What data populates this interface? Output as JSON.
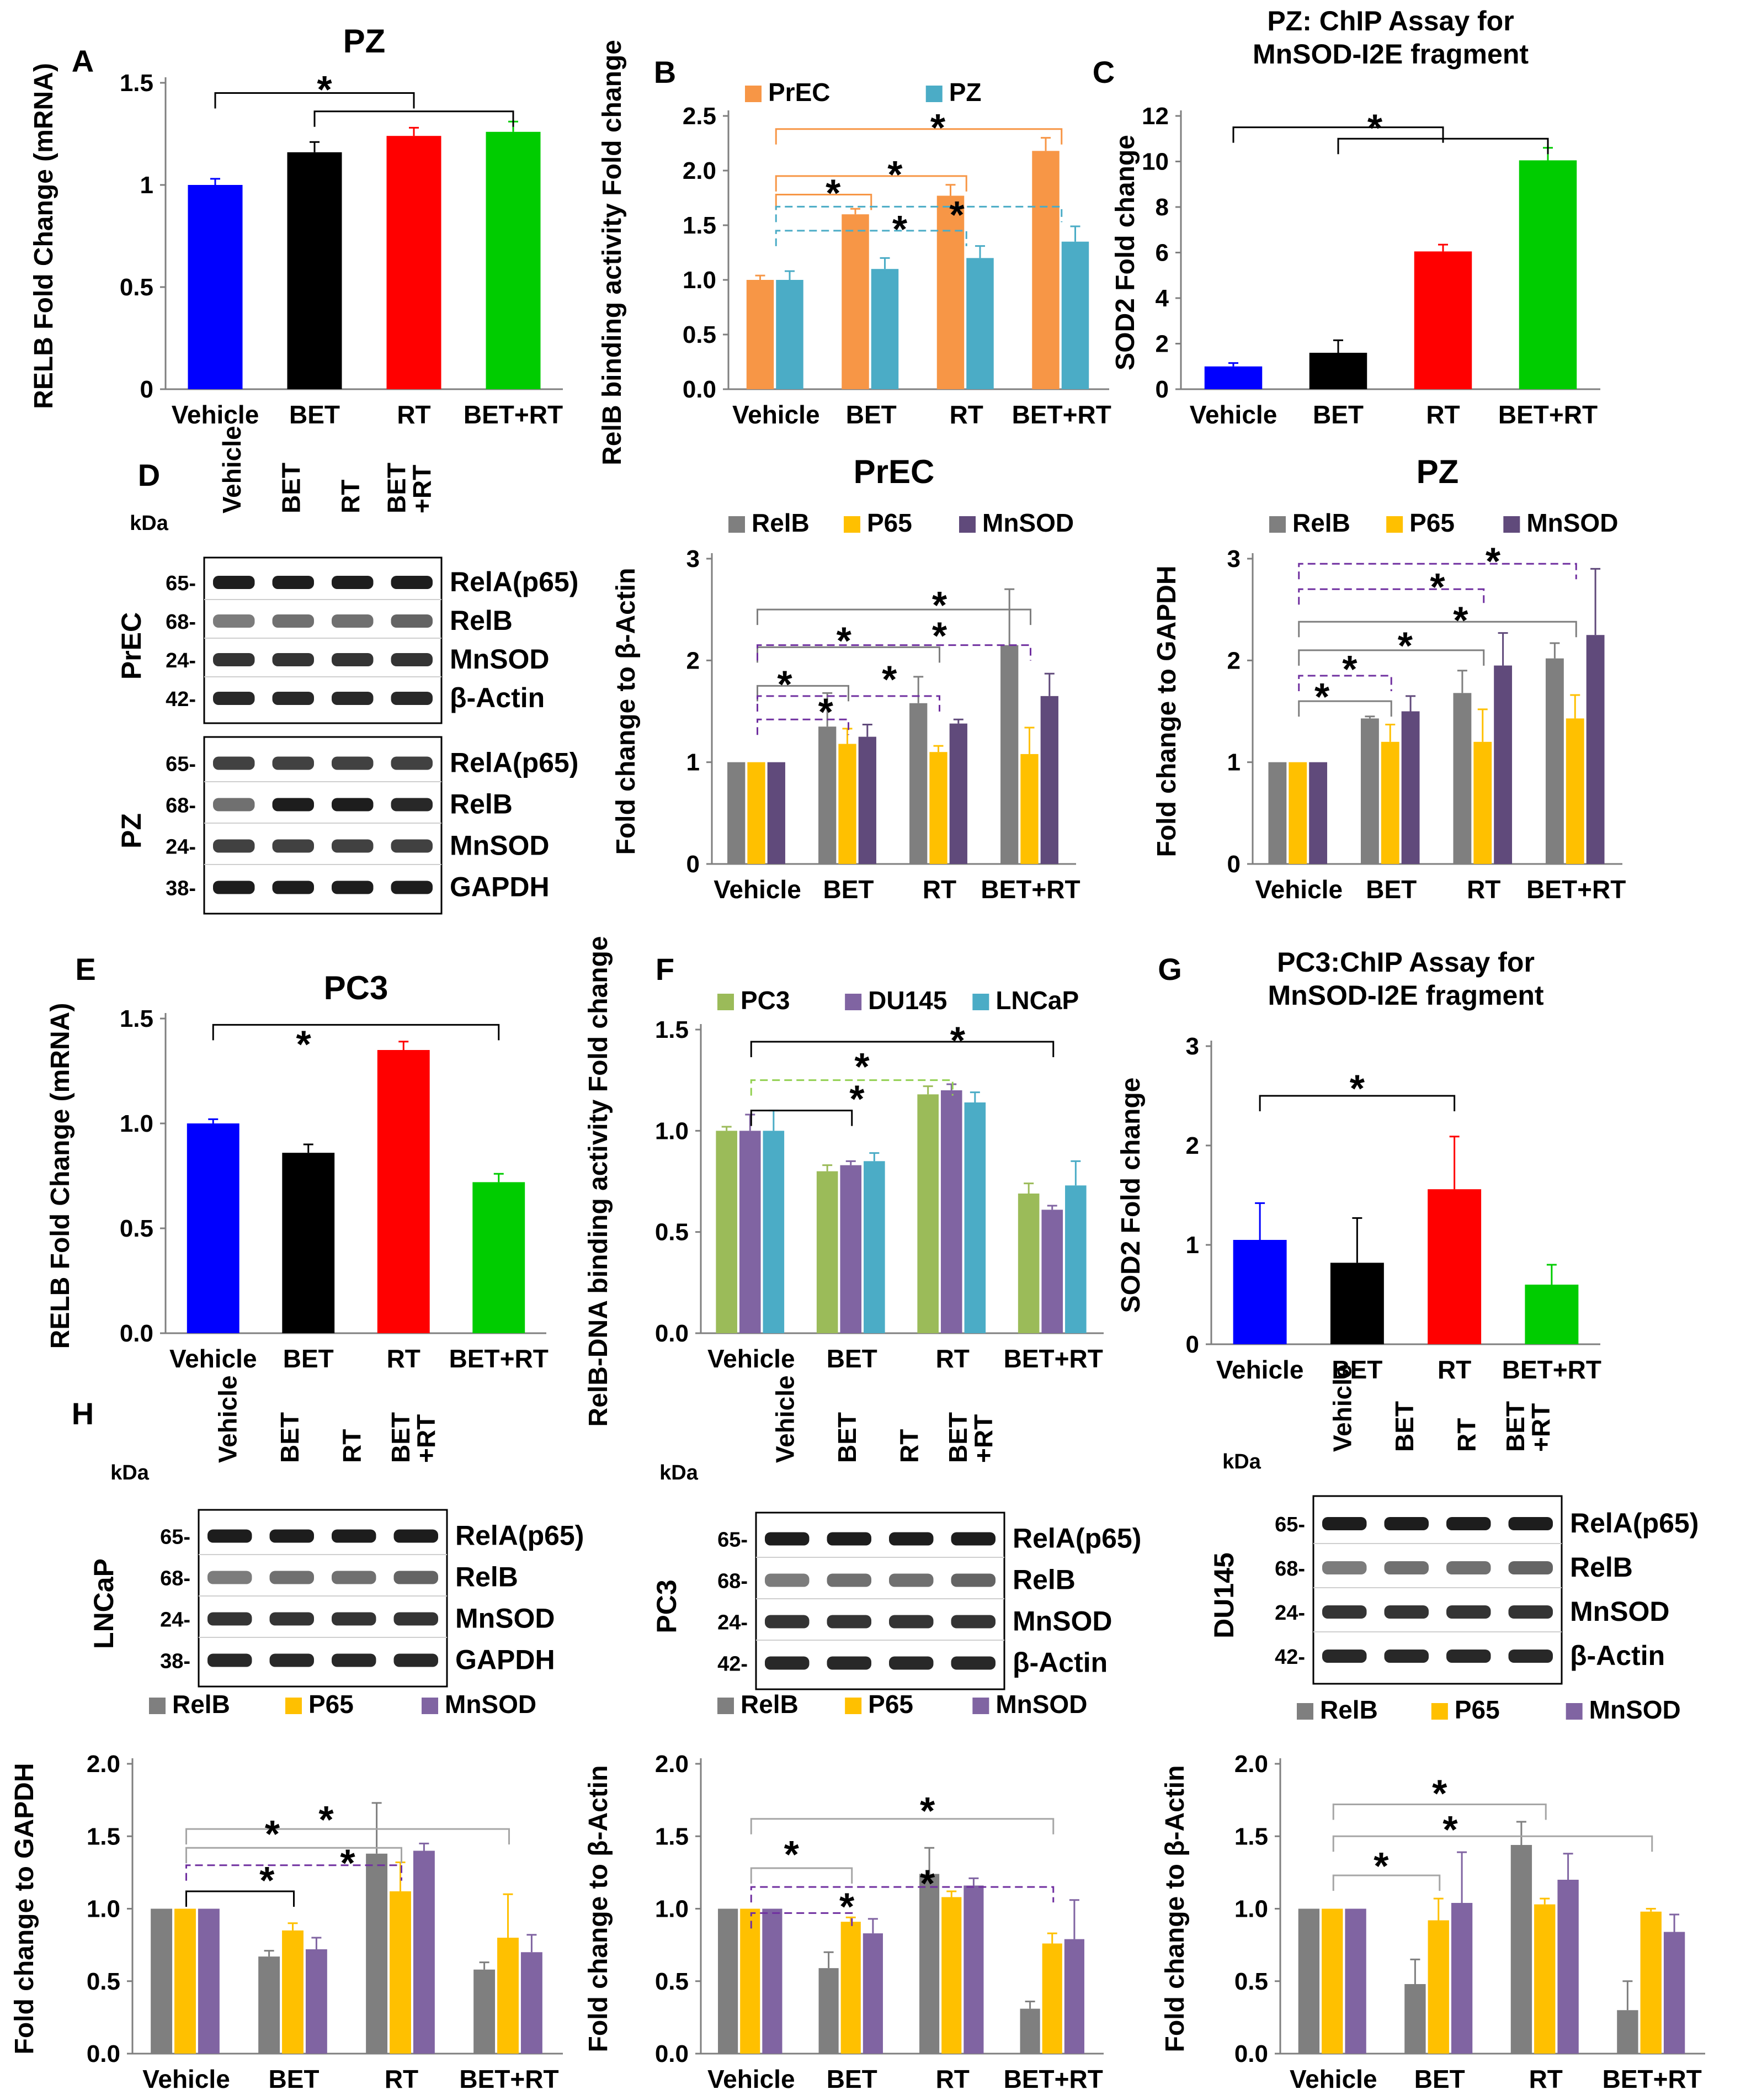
{
  "colors": {
    "vehicle": "#0000FF",
    "bet": "#000000",
    "rt": "#FF0000",
    "betrt": "#00CC00",
    "prec": "#F79646",
    "pz": "#4BACC6",
    "relb": "#7F7F7F",
    "p65": "#FFC000",
    "mnsod": "#604A7B",
    "pc3": "#9BBB59",
    "du145": "#8064A2",
    "lncap": "#4BACC6",
    "sig_green": "#92D050",
    "sig_purple": "#7030A0"
  },
  "blots": [
    {
      "panel": "D",
      "lanes": [
        "Vehicle",
        "BET",
        "RT",
        "BET +RT"
      ],
      "kda_label": "kDa",
      "groups": [
        {
          "cell": "PrEC",
          "rows": [
            {
              "kda": "65-",
              "protein": "RelA(p65)"
            },
            {
              "kda": "68-",
              "protein": "RelB"
            },
            {
              "kda": "24-",
              "protein": "MnSOD"
            },
            {
              "kda": "42-",
              "protein": "β-Actin"
            }
          ]
        },
        {
          "cell": "PZ",
          "rows": [
            {
              "kda": "65-",
              "protein": "RelA(p65)"
            },
            {
              "kda": "68-",
              "protein": "RelB"
            },
            {
              "kda": "24-",
              "protein": "MnSOD"
            },
            {
              "kda": "38-",
              "protein": "GAPDH"
            }
          ]
        }
      ]
    },
    {
      "panel": "H",
      "lanes": [
        "Vehicle",
        "BET",
        "RT",
        "BET +RT"
      ],
      "kda_label": "kDa",
      "groups": [
        {
          "cell": "LNCaP",
          "rows": [
            {
              "kda": "65-",
              "protein": "RelA(p65)"
            },
            {
              "kda": "68-",
              "protein": "RelB"
            },
            {
              "kda": "24-",
              "protein": "MnSOD"
            },
            {
              "kda": "38-",
              "protein": "GAPDH"
            }
          ]
        }
      ]
    },
    {
      "panel": "",
      "lanes": [
        "Vehicle",
        "BET",
        "RT",
        "BET +RT"
      ],
      "kda_label": "kDa",
      "groups": [
        {
          "cell": "PC3",
          "rows": [
            {
              "kda": "65-",
              "protein": "RelA(p65)"
            },
            {
              "kda": "68-",
              "protein": "RelB"
            },
            {
              "kda": "24-",
              "protein": "MnSOD"
            },
            {
              "kda": "42-",
              "protein": "β-Actin"
            }
          ]
        }
      ]
    },
    {
      "panel": "",
      "lanes": [
        "Vehicle",
        "BET",
        "RT",
        "BET +RT"
      ],
      "kda_label": "kDa",
      "groups": [
        {
          "cell": "DU145",
          "rows": [
            {
              "kda": "65-",
              "protein": "RelA(p65)"
            },
            {
              "kda": "68-",
              "protein": "RelB"
            },
            {
              "kda": "24-",
              "protein": "MnSOD"
            },
            {
              "kda": "42-",
              "protein": "β-Actin"
            }
          ]
        }
      ]
    }
  ],
  "chart_data": [
    {
      "panel": "A",
      "type": "bar",
      "title": "PZ",
      "ylabel": "RELB Fold Change (mRNA)",
      "categories": [
        "Vehicle",
        "BET",
        "RT",
        "BET+RT"
      ],
      "ylim": [
        0,
        1.5
      ],
      "yticks": [
        "0",
        "0.5",
        "1",
        "1.5"
      ],
      "tick_values": [
        0,
        0.5,
        1,
        1.5
      ],
      "series": [
        {
          "name": "RELB",
          "values": [
            1.0,
            1.16,
            1.24,
            1.26
          ],
          "errors": [
            0.03,
            0.05,
            0.04,
            0.05
          ],
          "colors": [
            "#0000FF",
            "#000000",
            "#FF0000",
            "#00CC00"
          ]
        }
      ],
      "significance": [
        {
          "label": "*",
          "color": "#000000",
          "from": "Vehicle",
          "to": [
            "BET",
            "RT",
            "BET+RT"
          ]
        }
      ]
    },
    {
      "panel": "B",
      "type": "bar",
      "title": "",
      "ylabel": "RelB binding activity Fold change",
      "categories": [
        "Vehicle",
        "BET",
        "RT",
        "BET+RT"
      ],
      "ylim": [
        0,
        2.5
      ],
      "yticks": [
        "0.0",
        "0.5",
        "1.0",
        "1.5",
        "2.0",
        "2.5"
      ],
      "tick_values": [
        0,
        0.5,
        1,
        1.5,
        2,
        2.5
      ],
      "legend": [
        "PrEC",
        "PZ"
      ],
      "series": [
        {
          "name": "PrEC",
          "values": [
            1.0,
            1.6,
            1.77,
            2.18
          ],
          "errors": [
            0.04,
            0.05,
            0.1,
            0.12
          ],
          "color": "#F79646"
        },
        {
          "name": "PZ",
          "values": [
            1.0,
            1.1,
            1.2,
            1.35
          ],
          "errors": [
            0.08,
            0.1,
            0.11,
            0.14
          ],
          "color": "#4BACC6"
        }
      ],
      "significance": [
        {
          "label": "*",
          "color": "#F79646",
          "note": "PrEC Vehicle vs BET, RT, BET+RT"
        },
        {
          "label": "*",
          "color": "#4BACC6",
          "note": "PZ Vehicle vs BET, RT, BET+RT (dashed)"
        }
      ]
    },
    {
      "panel": "C",
      "type": "bar",
      "title": "PZ: ChIP Assay for MnSOD-I2E fragment",
      "ylabel": "SOD2 Fold change",
      "categories": [
        "Vehicle",
        "BET",
        "RT",
        "BET+RT"
      ],
      "ylim": [
        0,
        12
      ],
      "yticks": [
        "0",
        "2",
        "4",
        "6",
        "8",
        "10",
        "12"
      ],
      "tick_values": [
        0,
        2,
        4,
        6,
        8,
        10,
        12
      ],
      "series": [
        {
          "name": "SOD2",
          "values": [
            1.0,
            1.6,
            6.05,
            10.05
          ],
          "errors": [
            0.15,
            0.55,
            0.3,
            0.55
          ],
          "colors": [
            "#0000FF",
            "#000000",
            "#FF0000",
            "#00CC00"
          ]
        }
      ],
      "significance": [
        {
          "label": "*",
          "color": "#000000",
          "from": "Vehicle",
          "to": [
            "BET",
            "RT",
            "BET+RT"
          ]
        }
      ]
    },
    {
      "panel": "D",
      "type": "bar",
      "title": "PrEC",
      "ylabel": "Fold change to β-Actin",
      "categories": [
        "Vehicle",
        "BET",
        "RT",
        "BET+RT"
      ],
      "ylim": [
        0,
        3
      ],
      "yticks": [
        "0",
        "1",
        "2",
        "3"
      ],
      "tick_values": [
        0,
        1,
        2,
        3
      ],
      "legend": [
        "RelB",
        "P65",
        "MnSOD"
      ],
      "series": [
        {
          "name": "RelB",
          "values": [
            1.0,
            1.35,
            1.58,
            2.15
          ],
          "errors": [
            0.0,
            0.33,
            0.26,
            0.55
          ],
          "color": "#7F7F7F"
        },
        {
          "name": "P65",
          "values": [
            1.0,
            1.18,
            1.1,
            1.08
          ],
          "errors": [
            0.0,
            0.15,
            0.06,
            0.26
          ],
          "color": "#FFC000"
        },
        {
          "name": "MnSOD",
          "values": [
            1.0,
            1.25,
            1.38,
            1.65
          ],
          "errors": [
            0.0,
            0.12,
            0.04,
            0.22
          ],
          "color": "#604A7B"
        }
      ],
      "significance": [
        {
          "label": "*",
          "color": "#7F7F7F",
          "note": "RelB Vehicle vs treatments"
        },
        {
          "label": "*",
          "color": "#7030A0",
          "note": "MnSOD Vehicle vs treatments (dashed)"
        }
      ]
    },
    {
      "panel": "D",
      "type": "bar",
      "title": "PZ",
      "ylabel": "Fold change to GAPDH",
      "categories": [
        "Vehicle",
        "BET",
        "RT",
        "BET+RT"
      ],
      "ylim": [
        0,
        3
      ],
      "yticks": [
        "0",
        "1",
        "2",
        "3"
      ],
      "tick_values": [
        0,
        1,
        2,
        3
      ],
      "legend": [
        "RelB",
        "P65",
        "MnSOD"
      ],
      "series": [
        {
          "name": "RelB",
          "values": [
            1.0,
            1.43,
            1.68,
            2.02
          ],
          "errors": [
            0.0,
            0.02,
            0.22,
            0.15
          ],
          "color": "#7F7F7F"
        },
        {
          "name": "P65",
          "values": [
            1.0,
            1.2,
            1.2,
            1.43
          ],
          "errors": [
            0.0,
            0.17,
            0.32,
            0.23
          ],
          "color": "#FFC000"
        },
        {
          "name": "MnSOD",
          "values": [
            1.0,
            1.5,
            1.95,
            2.25
          ],
          "errors": [
            0.0,
            0.15,
            0.32,
            0.65
          ],
          "color": "#604A7B"
        }
      ],
      "significance": [
        {
          "label": "*",
          "color": "#7F7F7F",
          "note": "RelB Vehicle vs treatments"
        },
        {
          "label": "*",
          "color": "#7030A0",
          "note": "MnSOD Vehicle vs treatments (dashed)"
        }
      ]
    },
    {
      "panel": "E",
      "type": "bar",
      "title": "PC3",
      "ylabel": "RELB Fold Change (mRNA)",
      "categories": [
        "Vehicle",
        "BET",
        "RT",
        "BET+RT"
      ],
      "ylim": [
        0,
        1.5
      ],
      "yticks": [
        "0.0",
        "0.5",
        "1.0",
        "1.5"
      ],
      "tick_values": [
        0,
        0.5,
        1,
        1.5
      ],
      "series": [
        {
          "name": "RELB",
          "values": [
            1.0,
            0.86,
            1.35,
            0.72
          ],
          "errors": [
            0.02,
            0.04,
            0.04,
            0.04
          ],
          "colors": [
            "#0000FF",
            "#000000",
            "#FF0000",
            "#00CC00"
          ]
        }
      ],
      "significance": [
        {
          "label": "*",
          "color": "#000000",
          "note": "Vehicle and BET vs RT and BET+RT"
        }
      ]
    },
    {
      "panel": "F",
      "type": "bar",
      "title": "",
      "ylabel": "RelB-DNA binding activity Fold change",
      "categories": [
        "Vehicle",
        "BET",
        "RT",
        "BET+RT"
      ],
      "ylim": [
        0,
        1.5
      ],
      "yticks": [
        "0.0",
        "0.5",
        "1.0",
        "1.5"
      ],
      "tick_values": [
        0,
        0.5,
        1,
        1.5
      ],
      "legend": [
        "PC3",
        "DU145",
        "LNCaP"
      ],
      "series": [
        {
          "name": "PC3",
          "values": [
            1.0,
            0.8,
            1.18,
            0.69
          ],
          "errors": [
            0.02,
            0.03,
            0.04,
            0.05
          ],
          "color": "#9BBB59"
        },
        {
          "name": "DU145",
          "values": [
            1.0,
            0.83,
            1.2,
            0.61
          ],
          "errors": [
            0.08,
            0.02,
            0.03,
            0.02
          ],
          "color": "#8064A2"
        },
        {
          "name": "LNCaP",
          "values": [
            1.0,
            0.85,
            1.14,
            0.73
          ],
          "errors": [
            0.1,
            0.04,
            0.05,
            0.12
          ],
          "color": "#4BACC6"
        }
      ],
      "significance": [
        {
          "label": "*",
          "color": "#000000"
        },
        {
          "label": "*",
          "color": "#92D050"
        },
        {
          "label": "*",
          "color": "#000000"
        }
      ]
    },
    {
      "panel": "G",
      "type": "bar",
      "title": "PC3:ChIP Assay for MnSOD-I2E fragment",
      "ylabel": "SOD2 Fold change",
      "categories": [
        "Vehicle",
        "BET",
        "RT",
        "BET+RT"
      ],
      "ylim": [
        0,
        3
      ],
      "yticks": [
        "0",
        "1",
        "2",
        "3"
      ],
      "tick_values": [
        0,
        1,
        2,
        3
      ],
      "series": [
        {
          "name": "SOD2",
          "values": [
            1.05,
            0.82,
            1.56,
            0.6
          ],
          "errors": [
            0.37,
            0.45,
            0.53,
            0.2
          ],
          "colors": [
            "#0000FF",
            "#000000",
            "#FF0000",
            "#00CC00"
          ]
        }
      ],
      "significance": [
        {
          "label": "*",
          "color": "#000000",
          "from": "Vehicle",
          "to": [
            "RT"
          ]
        }
      ]
    },
    {
      "panel": "H",
      "type": "bar",
      "title": "LNCaP",
      "ylabel": "Fold change to GAPDH",
      "categories": [
        "Vehicle",
        "BET",
        "RT",
        "BET+RT"
      ],
      "ylim": [
        0,
        2.0
      ],
      "yticks": [
        "0.0",
        "0.5",
        "1.0",
        "1.5",
        "2.0"
      ],
      "tick_values": [
        0,
        0.5,
        1,
        1.5,
        2
      ],
      "legend": [
        "RelB",
        "P65",
        "MnSOD"
      ],
      "series": [
        {
          "name": "RelB",
          "values": [
            1.0,
            0.67,
            1.38,
            0.58
          ],
          "errors": [
            0.0,
            0.04,
            0.35,
            0.05
          ],
          "color": "#7F7F7F"
        },
        {
          "name": "P65",
          "values": [
            1.0,
            0.85,
            1.12,
            0.8
          ],
          "errors": [
            0.0,
            0.05,
            0.2,
            0.3
          ],
          "color": "#FFC000"
        },
        {
          "name": "MnSOD",
          "values": [
            1.0,
            0.72,
            1.4,
            0.7
          ],
          "errors": [
            0.0,
            0.08,
            0.05,
            0.12
          ],
          "color": "#8064A2"
        }
      ],
      "significance": [
        {
          "label": "*",
          "color": "#000000"
        },
        {
          "label": "*",
          "color": "#A6A6A6"
        },
        {
          "label": "*",
          "color": "#7030A0"
        }
      ]
    },
    {
      "panel": "",
      "type": "bar",
      "title": "PC3",
      "ylabel": "Fold change to β-Actin",
      "categories": [
        "Vehicle",
        "BET",
        "RT",
        "BET+RT"
      ],
      "ylim": [
        0,
        2.0
      ],
      "yticks": [
        "0.0",
        "0.5",
        "1.0",
        "1.5",
        "2.0"
      ],
      "tick_values": [
        0,
        0.5,
        1,
        1.5,
        2
      ],
      "legend": [
        "RelB",
        "P65",
        "MnSOD"
      ],
      "series": [
        {
          "name": "RelB",
          "values": [
            1.0,
            0.59,
            1.24,
            0.31
          ],
          "errors": [
            0.0,
            0.11,
            0.18,
            0.05
          ],
          "color": "#7F7F7F"
        },
        {
          "name": "P65",
          "values": [
            1.0,
            0.91,
            1.08,
            0.76
          ],
          "errors": [
            0.0,
            0.03,
            0.04,
            0.07
          ],
          "color": "#FFC000"
        },
        {
          "name": "MnSOD",
          "values": [
            1.0,
            0.83,
            1.16,
            0.79
          ],
          "errors": [
            0.0,
            0.1,
            0.05,
            0.27
          ],
          "color": "#8064A2"
        }
      ],
      "significance": [
        {
          "label": "*",
          "color": "#A6A6A6"
        },
        {
          "label": "*",
          "color": "#7030A0"
        }
      ]
    },
    {
      "panel": "",
      "type": "bar",
      "title": "DU145",
      "ylabel": "Fold change to β-Actin",
      "categories": [
        "Vehicle",
        "BET",
        "RT",
        "BET+RT"
      ],
      "ylim": [
        0,
        2.0
      ],
      "yticks": [
        "0.0",
        "0.5",
        "1.0",
        "1.5",
        "2.0"
      ],
      "tick_values": [
        0,
        0.5,
        1,
        1.5,
        2
      ],
      "legend": [
        "RelB",
        "P65",
        "MnSOD"
      ],
      "series": [
        {
          "name": "RelB",
          "values": [
            1.0,
            0.48,
            1.44,
            0.3
          ],
          "errors": [
            0.0,
            0.17,
            0.16,
            0.2
          ],
          "color": "#7F7F7F"
        },
        {
          "name": "P65",
          "values": [
            1.0,
            0.92,
            1.03,
            0.98
          ],
          "errors": [
            0.0,
            0.15,
            0.04,
            0.02
          ],
          "color": "#FFC000"
        },
        {
          "name": "MnSOD",
          "values": [
            1.0,
            1.04,
            1.2,
            0.84
          ],
          "errors": [
            0.0,
            0.35,
            0.18,
            0.12
          ],
          "color": "#8064A2"
        }
      ],
      "significance": [
        {
          "label": "*",
          "color": "#A6A6A6"
        }
      ]
    }
  ]
}
